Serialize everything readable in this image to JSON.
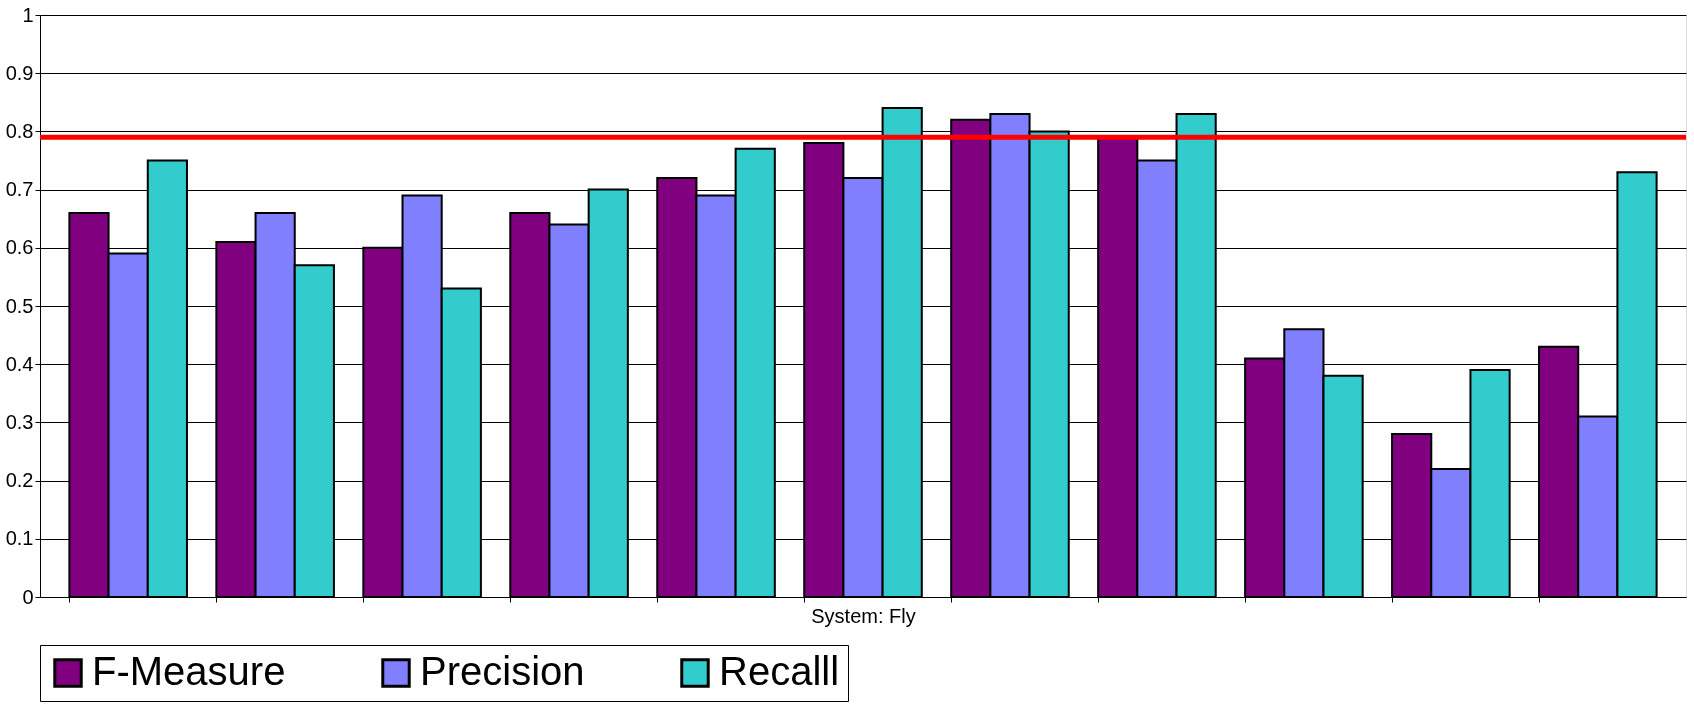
{
  "chart_data": {
    "type": "bar",
    "xlabel": "System: Fly",
    "categories": [
      null,
      null,
      null,
      null,
      null,
      null,
      null,
      null,
      null,
      null,
      null
    ],
    "series": [
      {
        "name": "F-Measure",
        "color": "#800080",
        "values": [
          0.66,
          0.61,
          0.6,
          0.66,
          0.72,
          0.78,
          0.82,
          0.79,
          0.41,
          0.28,
          0.43
        ]
      },
      {
        "name": "Precision",
        "color": "#8080ff",
        "values": [
          0.59,
          0.66,
          0.69,
          0.64,
          0.69,
          0.72,
          0.83,
          0.75,
          0.46,
          0.22,
          0.31
        ]
      },
      {
        "name": "Recalll",
        "color": "#33cccc",
        "values": [
          0.75,
          0.57,
          0.53,
          0.7,
          0.77,
          0.84,
          0.8,
          0.83,
          0.38,
          0.39,
          0.73
        ]
      }
    ],
    "ylim": [
      0,
      1
    ],
    "yticks": [
      0,
      0.1,
      0.2,
      0.3,
      0.4,
      0.5,
      0.6,
      0.7,
      0.8,
      0.9,
      1
    ],
    "ref_lines": [
      {
        "axis": "y",
        "value": 0.79,
        "color": "#ff0000"
      }
    ],
    "grid": "y",
    "legend": "bottom",
    "tick_labels": "y"
  }
}
